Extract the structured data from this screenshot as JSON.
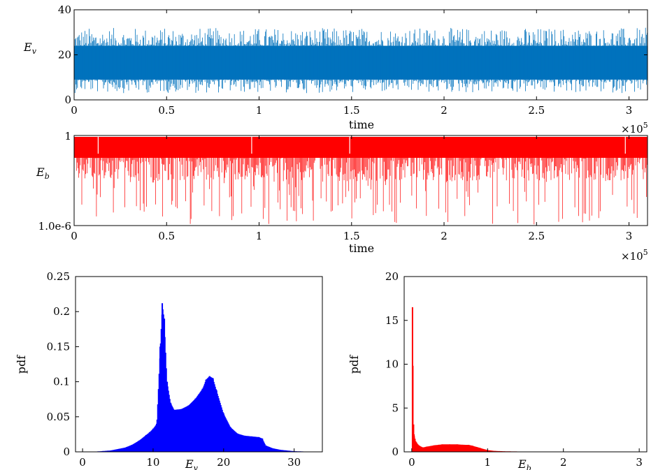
{
  "chart_data": [
    {
      "type": "line",
      "ylabel_main": "E",
      "ylabel_sub": "v",
      "xlabel": "time",
      "x_exponent_base": "×10",
      "x_exponent_power": "5",
      "xlim": [
        0,
        3.1
      ],
      "ylim": [
        0,
        40
      ],
      "x_ticks": [
        "0",
        "0.5",
        "1",
        "1.5",
        "2",
        "2.5",
        "3"
      ],
      "y_ticks": [
        "0",
        "20",
        "40"
      ],
      "color": "#0072BD",
      "series_summary": {
        "band_low": 9,
        "band_high": 24,
        "peak_max": 32,
        "dip_min": 3
      }
    },
    {
      "type": "line",
      "ylabel_main": "E",
      "ylabel_sub": "b",
      "xlabel": "time",
      "x_exponent_base": "×10",
      "x_exponent_power": "5",
      "xlim": [
        0,
        3.1
      ],
      "yscale": "log",
      "ylim": [
        1e-06,
        1
      ],
      "x_ticks": [
        "0",
        "0.5",
        "1",
        "1.5",
        "2",
        "2.5",
        "3"
      ],
      "y_ticks": [
        "1.0e-6",
        "1"
      ],
      "color": "#FF0000"
    },
    {
      "type": "bar",
      "xlabel_main": "E",
      "xlabel_sub": "v",
      "ylabel": "pdf",
      "xlim": [
        -1,
        34
      ],
      "ylim": [
        0,
        0.25
      ],
      "x_ticks": [
        "0",
        "10",
        "20",
        "30"
      ],
      "y_ticks": [
        "0",
        "0.05",
        "0.1",
        "0.15",
        "0.2",
        "0.25"
      ],
      "color": "#0000FF",
      "x": [
        2,
        4,
        6,
        7,
        8,
        9,
        9.5,
        10,
        10.5,
        11,
        11.3,
        11.6,
        12,
        12.5,
        13,
        14,
        15,
        16,
        17,
        17.5,
        18,
        18.5,
        19,
        20,
        21,
        22,
        23,
        24,
        25,
        25.5,
        26,
        27,
        28,
        30,
        32
      ],
      "values": [
        0.0005,
        0.002,
        0.006,
        0.01,
        0.016,
        0.024,
        0.028,
        0.033,
        0.04,
        0.15,
        0.212,
        0.19,
        0.1,
        0.07,
        0.06,
        0.061,
        0.066,
        0.076,
        0.09,
        0.103,
        0.108,
        0.105,
        0.088,
        0.055,
        0.035,
        0.026,
        0.023,
        0.022,
        0.021,
        0.019,
        0.009,
        0.005,
        0.003,
        0.001,
        0.0003
      ]
    },
    {
      "type": "bar",
      "xlabel_main": "E",
      "xlabel_sub": "b",
      "ylabel": "pdf",
      "xlim": [
        -0.1,
        3.1
      ],
      "ylim": [
        0,
        20
      ],
      "x_ticks": [
        "0",
        "1",
        "2",
        "3"
      ],
      "y_ticks": [
        "0",
        "5",
        "10",
        "15",
        "20"
      ],
      "color": "#FF0000",
      "x": [
        0.01,
        0.03,
        0.06,
        0.1,
        0.15,
        0.2,
        0.3,
        0.4,
        0.5,
        0.6,
        0.7,
        0.75,
        0.8,
        0.9,
        1.0,
        1.1,
        1.3,
        1.6,
        2.0,
        2.5,
        2.9,
        3.0
      ],
      "values": [
        16.5,
        2.0,
        1.1,
        0.7,
        0.5,
        0.6,
        0.75,
        0.85,
        0.85,
        0.85,
        0.8,
        0.8,
        0.7,
        0.45,
        0.2,
        0.1,
        0.05,
        0.03,
        0.02,
        0.02,
        0.03,
        0.02
      ]
    }
  ]
}
